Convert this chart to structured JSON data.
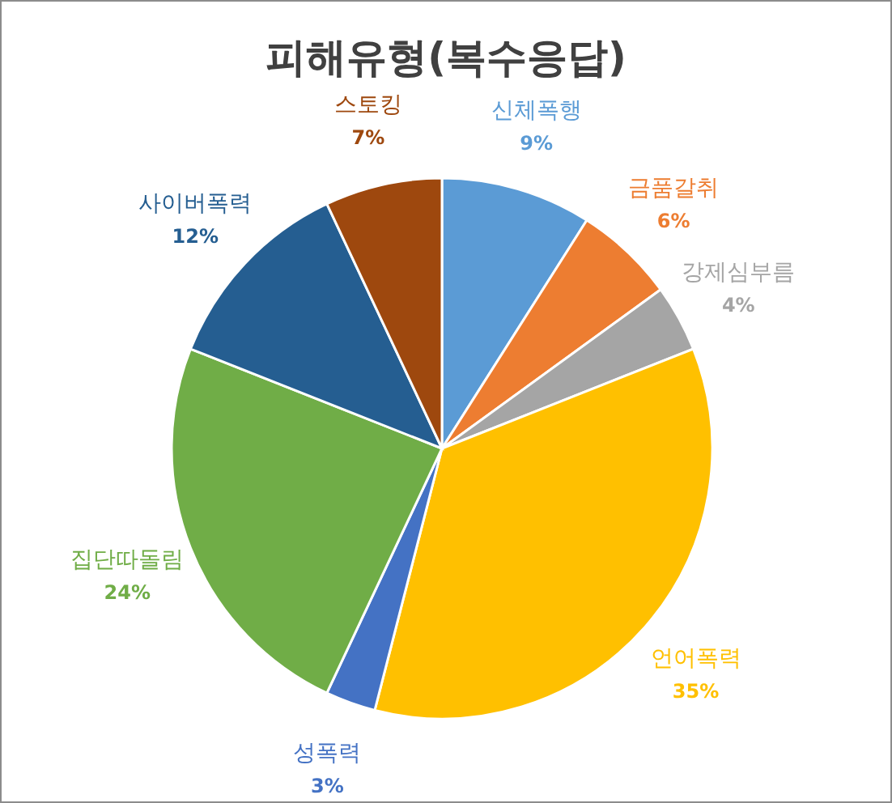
{
  "chart_data": {
    "type": "pie",
    "title": "피해유형(복수응답)",
    "categories": [
      "신체폭행",
      "금품갈취",
      "강제심부름",
      "언어폭력",
      "성폭력",
      "집단따돌림",
      "사이버폭력",
      "스토킹"
    ],
    "values": [
      9,
      6,
      4,
      35,
      3,
      24,
      12,
      7
    ],
    "value_labels": [
      "9%",
      "6%",
      "4%",
      "35%",
      "3%",
      "24%",
      "12%",
      "7%"
    ],
    "colors": [
      "#5b9bd5",
      "#ed7d31",
      "#a5a5a5",
      "#ffc000",
      "#4472c4",
      "#70ad47",
      "#255e91",
      "#9e480e"
    ],
    "legend": false
  }
}
